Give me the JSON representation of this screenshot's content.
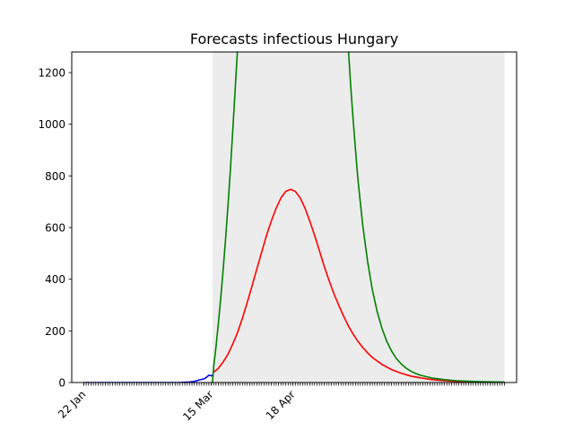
{
  "chart_data": {
    "type": "line",
    "title": "Forecasts infectious Hungary",
    "xlabel": "",
    "ylabel": "",
    "x_ticks_labeled": [
      {
        "label": "22 Jan",
        "day": 0
      },
      {
        "label": "15 Mar",
        "day": 53
      },
      {
        "label": "18 Apr",
        "day": 87
      }
    ],
    "xlim_days": [
      -5,
      180
    ],
    "ylim": [
      0,
      1280
    ],
    "y_ticks": [
      0,
      200,
      400,
      600,
      800,
      1000,
      1200
    ],
    "grid": false,
    "shaded_band": {
      "color": "#ececec",
      "from_day": 53.5,
      "to_day": 175
    },
    "series": [
      {
        "color": "#0000ff",
        "points": [
          [
            0,
            0
          ],
          [
            5,
            0
          ],
          [
            10,
            0
          ],
          [
            15,
            0
          ],
          [
            20,
            0
          ],
          [
            25,
            0
          ],
          [
            30,
            0
          ],
          [
            35,
            0
          ],
          [
            40,
            0
          ],
          [
            42,
            1
          ],
          [
            44,
            2
          ],
          [
            46,
            4
          ],
          [
            47,
            7
          ],
          [
            48,
            10
          ],
          [
            49,
            12
          ],
          [
            50,
            14
          ],
          [
            51,
            20
          ],
          [
            52,
            28
          ],
          [
            53,
            26
          ],
          [
            54,
            32
          ]
        ]
      },
      {
        "color": "#ff0000",
        "points": [
          [
            54,
            40
          ],
          [
            56,
            55
          ],
          [
            58,
            80
          ],
          [
            60,
            110
          ],
          [
            62,
            150
          ],
          [
            64,
            195
          ],
          [
            66,
            250
          ],
          [
            68,
            310
          ],
          [
            70,
            375
          ],
          [
            72,
            440
          ],
          [
            74,
            505
          ],
          [
            76,
            570
          ],
          [
            78,
            625
          ],
          [
            80,
            675
          ],
          [
            82,
            715
          ],
          [
            84,
            740
          ],
          [
            86,
            748
          ],
          [
            88,
            740
          ],
          [
            90,
            715
          ],
          [
            92,
            675
          ],
          [
            94,
            625
          ],
          [
            96,
            570
          ],
          [
            98,
            510
          ],
          [
            100,
            450
          ],
          [
            102,
            395
          ],
          [
            104,
            345
          ],
          [
            106,
            300
          ],
          [
            108,
            258
          ],
          [
            110,
            220
          ],
          [
            112,
            188
          ],
          [
            114,
            160
          ],
          [
            116,
            136
          ],
          [
            118,
            115
          ],
          [
            120,
            97
          ],
          [
            124,
            70
          ],
          [
            128,
            50
          ],
          [
            132,
            36
          ],
          [
            136,
            25
          ],
          [
            140,
            18
          ],
          [
            145,
            11
          ],
          [
            150,
            7
          ],
          [
            155,
            4
          ],
          [
            160,
            2.5
          ],
          [
            165,
            1.5
          ],
          [
            170,
            1
          ],
          [
            175,
            0.5
          ]
        ]
      },
      {
        "color": "#008000",
        "points": [
          [
            53.5,
            0
          ],
          [
            54,
            60
          ],
          [
            55,
            140
          ],
          [
            56,
            230
          ],
          [
            57,
            330
          ],
          [
            58,
            440
          ],
          [
            59,
            560
          ],
          [
            60,
            690
          ],
          [
            61,
            830
          ],
          [
            62,
            980
          ],
          [
            63,
            1140
          ],
          [
            64,
            1300
          ],
          [
            110,
            1300
          ],
          [
            111,
            1150
          ],
          [
            112,
            1020
          ],
          [
            113,
            900
          ],
          [
            114,
            790
          ],
          [
            116,
            610
          ],
          [
            118,
            470
          ],
          [
            120,
            360
          ],
          [
            122,
            275
          ],
          [
            124,
            210
          ],
          [
            126,
            160
          ],
          [
            128,
            122
          ],
          [
            130,
            93
          ],
          [
            132,
            72
          ],
          [
            134,
            56
          ],
          [
            136,
            44
          ],
          [
            138,
            35
          ],
          [
            140,
            28
          ],
          [
            145,
            17
          ],
          [
            150,
            11
          ],
          [
            155,
            7
          ],
          [
            160,
            5
          ],
          [
            165,
            3.5
          ],
          [
            170,
            2.5
          ],
          [
            175,
            1.5
          ]
        ]
      }
    ]
  }
}
